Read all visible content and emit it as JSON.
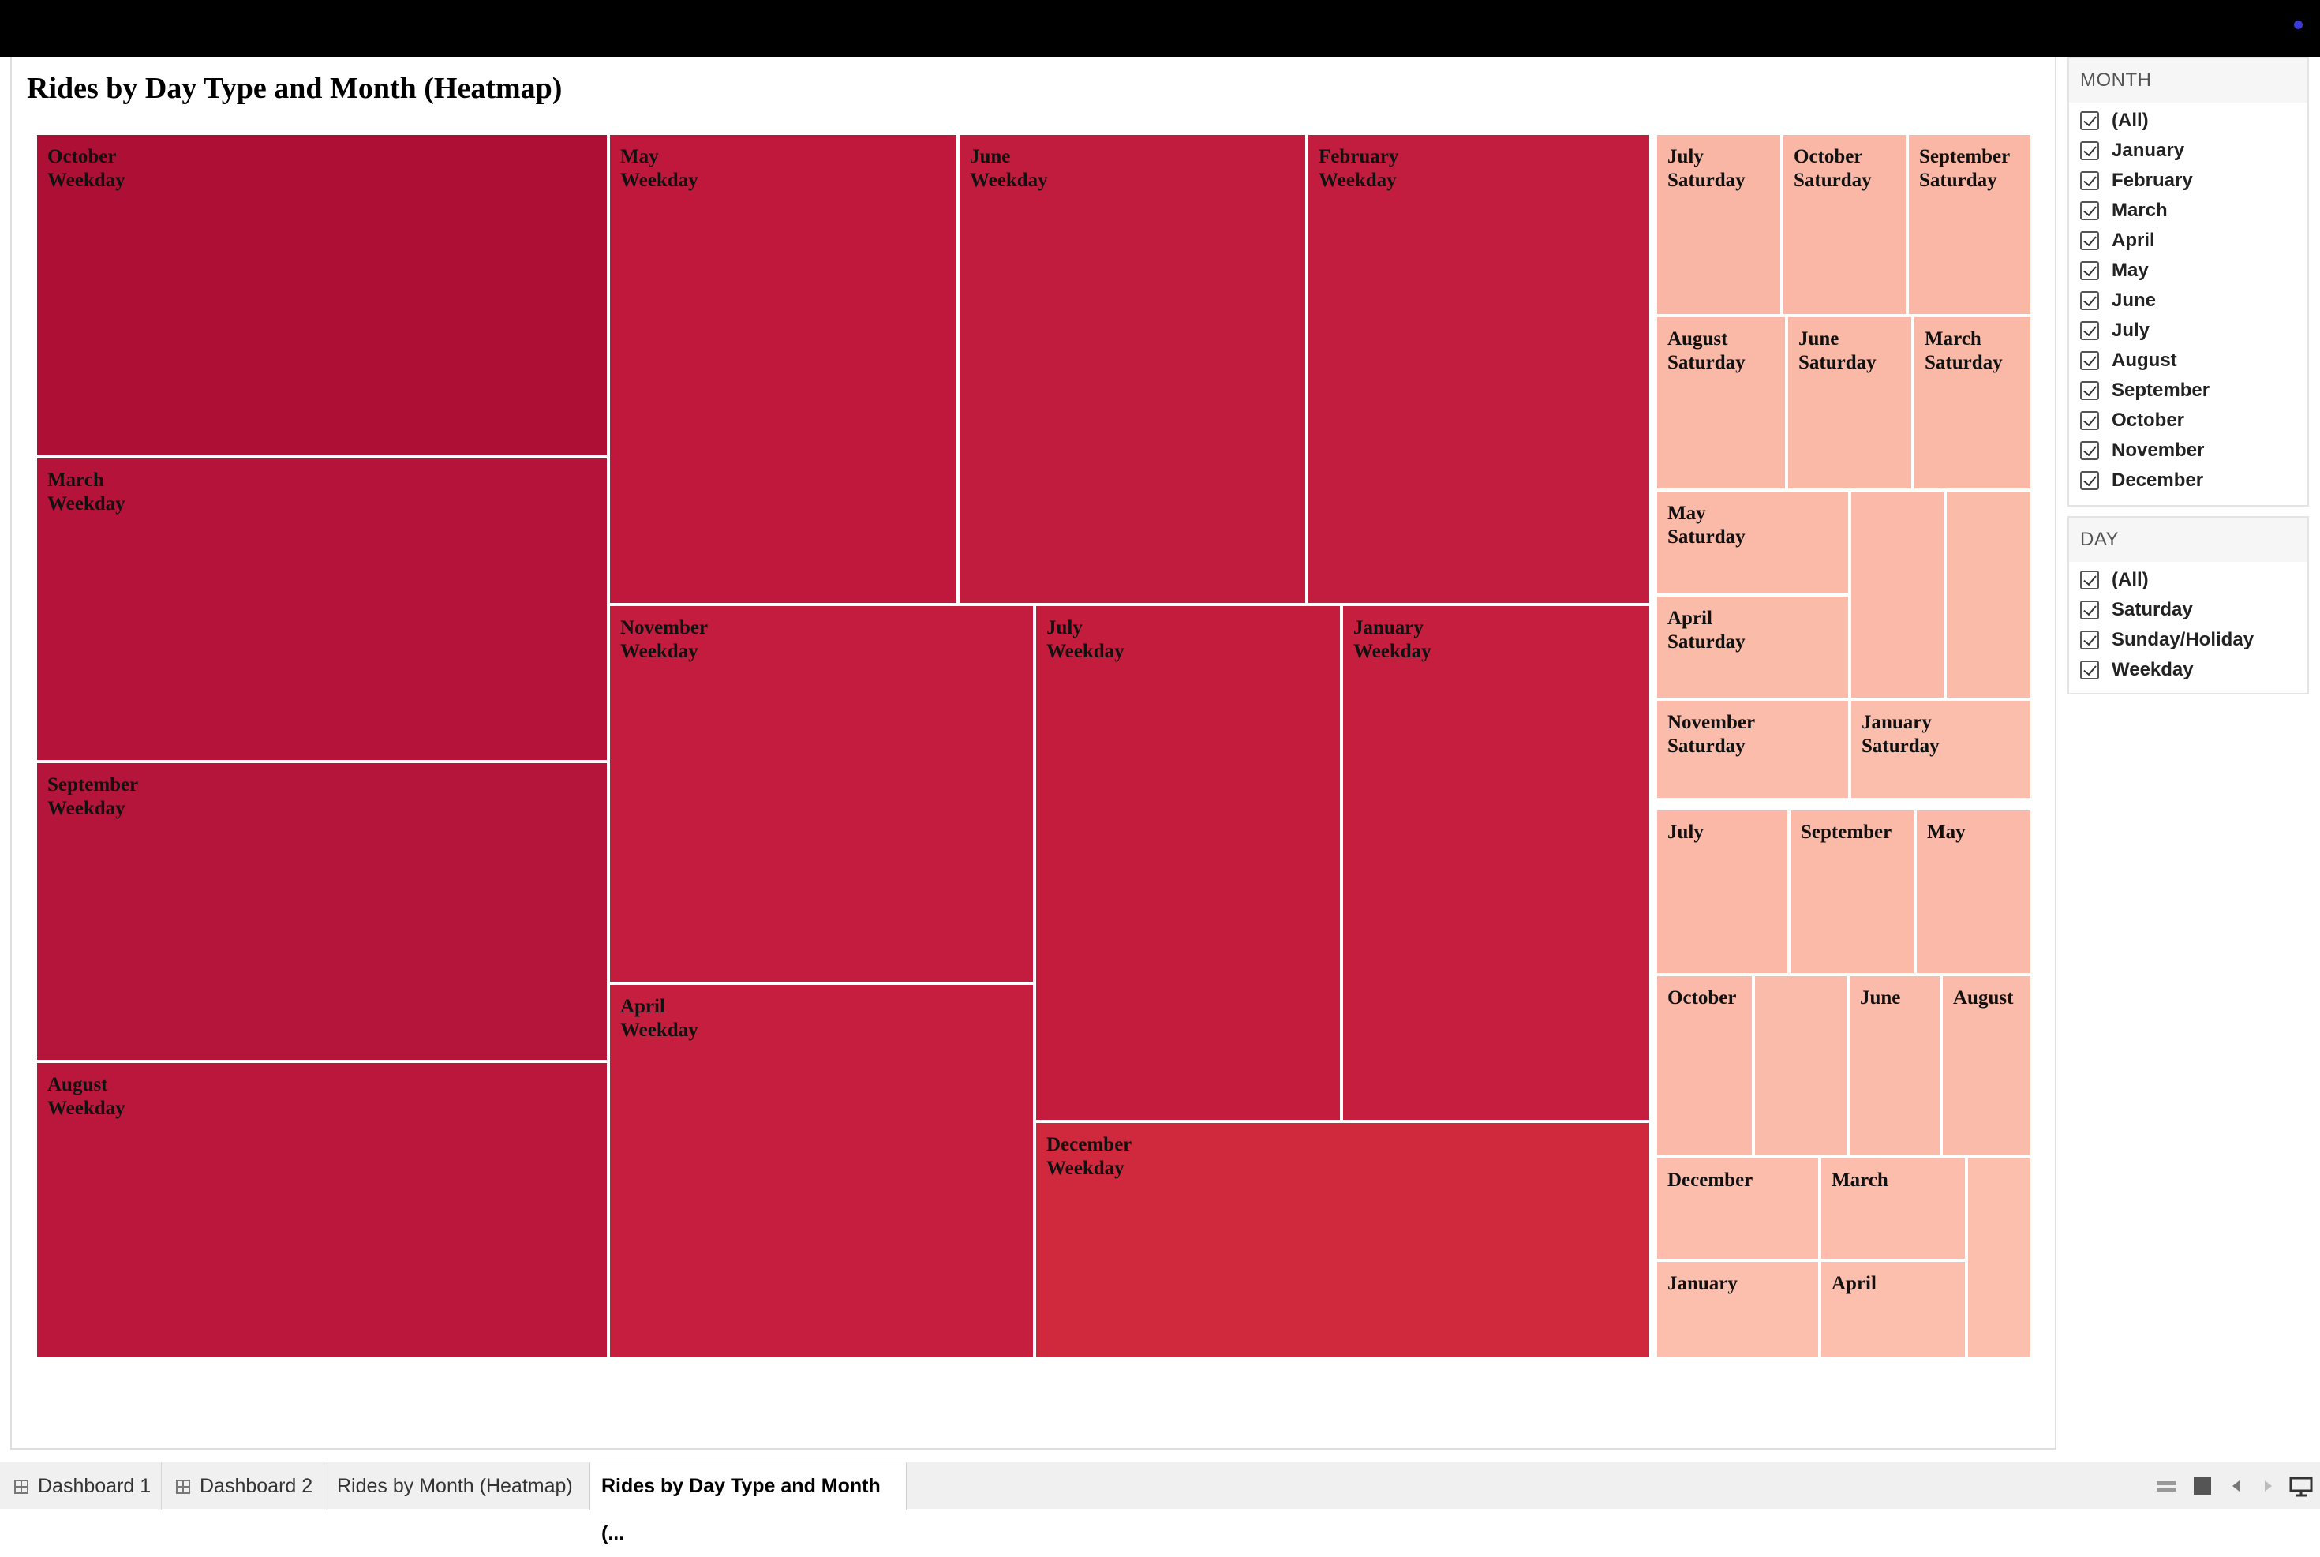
{
  "sheet": {
    "title": "Rides by Day Type and Month (Heatmap)"
  },
  "chart_data": {
    "type": "heatmap",
    "description_free": true,
    "color_scale": {
      "low": "#fcc0ae",
      "high": "#ad1034"
    },
    "cells": [
      {
        "month": "October",
        "day": "Weekday",
        "label": "October\nWeekday",
        "color": "#ad1034"
      },
      {
        "month": "March",
        "day": "Weekday",
        "label": "March\nWeekday",
        "color": "#b5133a"
      },
      {
        "month": "September",
        "day": "Weekday",
        "label": "September\nWeekday",
        "color": "#b6153b"
      },
      {
        "month": "August",
        "day": "Weekday",
        "label": "August\nWeekday",
        "color": "#bb173c"
      },
      {
        "month": "May",
        "day": "Weekday",
        "label": "May\nWeekday",
        "color": "#bf183c"
      },
      {
        "month": "June",
        "day": "Weekday",
        "label": "June\nWeekday",
        "color": "#c11b3d"
      },
      {
        "month": "February",
        "day": "Weekday",
        "label": "February\nWeekday",
        "color": "#c21c3e"
      },
      {
        "month": "November",
        "day": "Weekday",
        "label": "November\nWeekday",
        "color": "#c31c3e"
      },
      {
        "month": "April",
        "day": "Weekday",
        "label": "April\nWeekday",
        "color": "#c51e3e"
      },
      {
        "month": "July",
        "day": "Weekday",
        "label": "July\nWeekday",
        "color": "#c31c3d"
      },
      {
        "month": "January",
        "day": "Weekday",
        "label": "January\nWeekday",
        "color": "#c51e3e"
      },
      {
        "month": "December",
        "day": "Weekday",
        "label": "December\nWeekday",
        "color": "#d0283d"
      },
      {
        "month": "July",
        "day": "Saturday",
        "label": "July\nSaturday",
        "color": "#fab6a4"
      },
      {
        "month": "October",
        "day": "Saturday",
        "label": "October\nSaturday",
        "color": "#fab7a5"
      },
      {
        "month": "September",
        "day": "Saturday",
        "label": "September\nSaturday",
        "color": "#fab7a5"
      },
      {
        "month": "August",
        "day": "Saturday",
        "label": "August\nSaturday",
        "color": "#fab8a6"
      },
      {
        "month": "June",
        "day": "Saturday",
        "label": "June\nSaturday",
        "color": "#fab8a6"
      },
      {
        "month": "March",
        "day": "Saturday",
        "label": "March\nSaturday",
        "color": "#fab9a7"
      },
      {
        "month": "May",
        "day": "Saturday",
        "label": "May\nSaturday",
        "color": "#fbb9a8"
      },
      {
        "month": "",
        "day": "Saturday",
        "label": "",
        "color": "#fbbaa9"
      },
      {
        "month": "",
        "day": "Saturday",
        "label": "",
        "color": "#fbbba9"
      },
      {
        "month": "April",
        "day": "Saturday",
        "label": "April\nSaturday",
        "color": "#fbbba9"
      },
      {
        "month": "November",
        "day": "Saturday",
        "label": "November\nSaturday",
        "color": "#fbbcab"
      },
      {
        "month": "January",
        "day": "Saturday",
        "label": "January\nSaturday",
        "color": "#fbbdac"
      },
      {
        "month": "July",
        "day": "Sunday/Holiday",
        "label": "July",
        "color": "#fbb8a7"
      },
      {
        "month": "September",
        "day": "Sunday/Holiday",
        "label": "September",
        "color": "#fbb9a8"
      },
      {
        "month": "May",
        "day": "Sunday/Holiday",
        "label": "May",
        "color": "#fbbaa9"
      },
      {
        "month": "October",
        "day": "Sunday/Holiday",
        "label": "October",
        "color": "#fbbaa9"
      },
      {
        "month": "",
        "day": "Sunday/Holiday",
        "label": "",
        "color": "#fbbbaa"
      },
      {
        "month": "June",
        "day": "Sunday/Holiday",
        "label": "June",
        "color": "#fbbbaa"
      },
      {
        "month": "August",
        "day": "Sunday/Holiday",
        "label": "August",
        "color": "#fbbbaa"
      },
      {
        "month": "December",
        "day": "Sunday/Holiday",
        "label": "December",
        "color": "#fcbdac"
      },
      {
        "month": "March",
        "day": "Sunday/Holiday",
        "label": "March",
        "color": "#fcbdac"
      },
      {
        "month": "",
        "day": "Sunday/Holiday",
        "label": "",
        "color": "#fcbead"
      },
      {
        "month": "January",
        "day": "Sunday/Holiday",
        "label": "January",
        "color": "#fcbfae"
      },
      {
        "month": "April",
        "day": "Sunday/Holiday",
        "label": "April",
        "color": "#fcbfae"
      }
    ]
  },
  "filters": {
    "month": {
      "title": "MONTH",
      "options": [
        "(All)",
        "January",
        "February",
        "March",
        "April",
        "May",
        "June",
        "July",
        "August",
        "September",
        "October",
        "November",
        "December"
      ]
    },
    "day": {
      "title": "DAY",
      "options": [
        "(All)",
        "Saturday",
        "Sunday/Holiday",
        "Weekday"
      ]
    }
  },
  "tabs": [
    {
      "label": "Dashboard 1",
      "icon": "dashboard-grid-icon"
    },
    {
      "label": "Dashboard 2",
      "icon": "dashboard-grid-icon"
    },
    {
      "label": "Rides by Month (Heatmap)",
      "icon": ""
    },
    {
      "label": "Rides by Day Type and Month (...",
      "icon": "",
      "active": true
    }
  ],
  "status_icons": [
    "grid-view-icon",
    "single-view-icon",
    "previous-icon",
    "next-icon",
    "present-icon"
  ]
}
